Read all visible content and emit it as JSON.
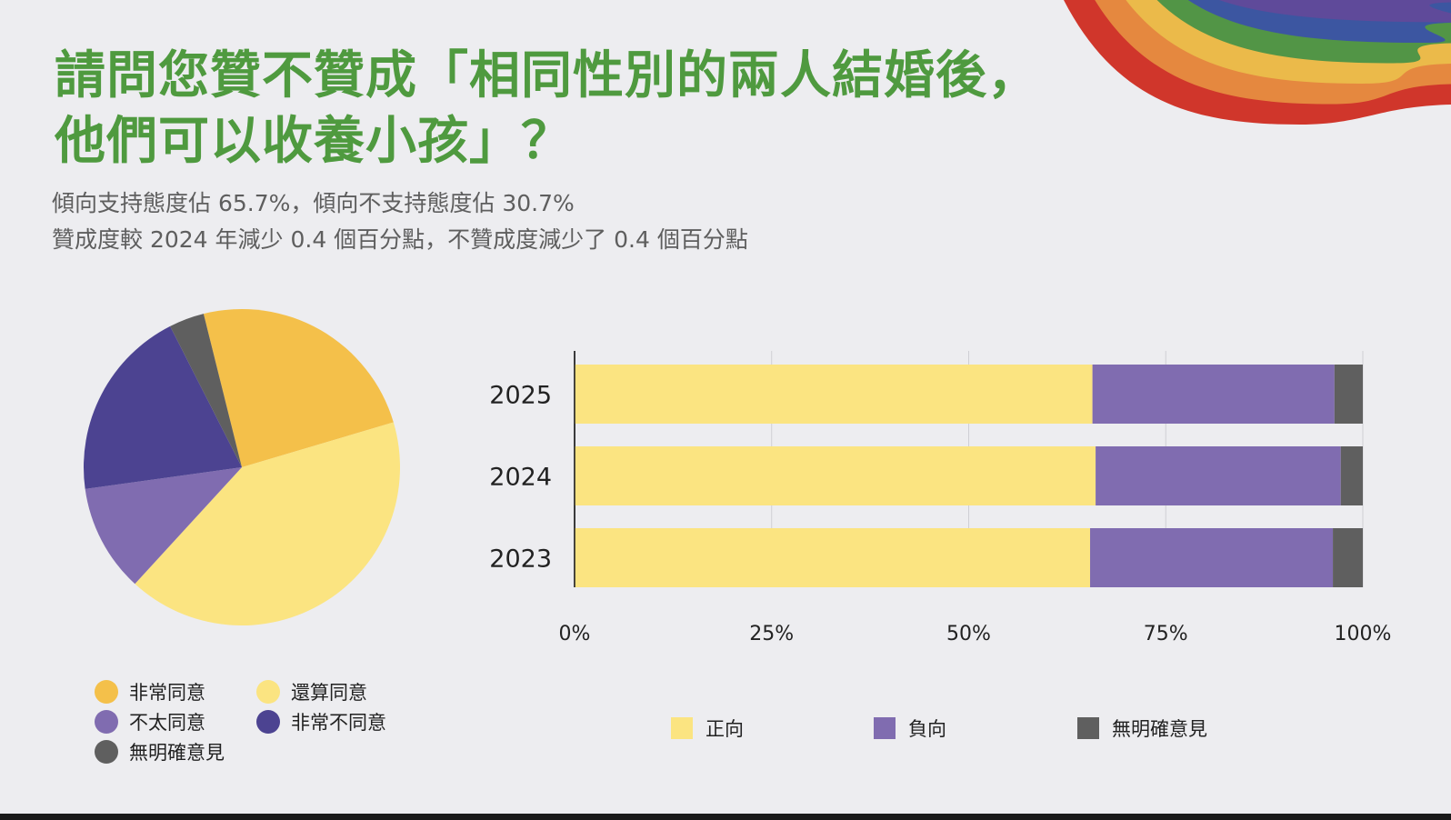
{
  "title_line1": "請問您贊不贊成「相同性別的兩人結婚後，",
  "title_line2": "他們可以收養小孩」？",
  "subtitle_line1": "傾向支持態度佔 65.7%，傾向不支持態度佔 30.7%",
  "subtitle_line2": "贊成度較 2024 年減少 0.4 個百分點，不贊成度減少了 0.4 個百分點",
  "colors": {
    "very_agree": "#f4c04a",
    "somewhat_agree": "#fbe481",
    "somewhat_disagree": "#806cb0",
    "very_disagree": "#4c4391",
    "no_opinion": "#5f5f5f",
    "positive": "#fbe481",
    "negative": "#806cb0",
    "undecided": "#5f5f5f",
    "rainbow": [
      "#d0362b",
      "#e5883f",
      "#ebba4a",
      "#529546",
      "#3c56a1",
      "#5f4a9a"
    ]
  },
  "chart_data": [
    {
      "type": "pie",
      "title": "",
      "start_angle_deg": -104,
      "slices": [
        {
          "key": "very_agree",
          "label": "非常同意",
          "value": 24.3
        },
        {
          "key": "somewhat_agree",
          "label": "還算同意",
          "value": 41.4
        },
        {
          "key": "somewhat_disagree",
          "label": "不太同意",
          "value": 11.0
        },
        {
          "key": "very_disagree",
          "label": "非常不同意",
          "value": 19.7
        },
        {
          "key": "no_opinion",
          "label": "無明確意見",
          "value": 3.6
        }
      ],
      "legend_order": [
        "very_agree",
        "somewhat_agree",
        "somewhat_disagree",
        "very_disagree",
        "no_opinion"
      ]
    },
    {
      "type": "bar",
      "orientation": "horizontal",
      "stacked": true,
      "categories": [
        "2025",
        "2024",
        "2023"
      ],
      "series": [
        {
          "key": "positive",
          "name": "正向",
          "values": [
            65.7,
            66.1,
            65.4
          ]
        },
        {
          "key": "negative",
          "name": "負向",
          "values": [
            30.7,
            31.1,
            30.8
          ]
        },
        {
          "key": "undecided",
          "name": "無明確意見",
          "values": [
            3.6,
            2.8,
            3.8
          ]
        }
      ],
      "xlim": [
        0,
        100
      ],
      "xticks": [
        0,
        25,
        50,
        75,
        100
      ],
      "xtick_labels": [
        "0%",
        "25%",
        "50%",
        "75%",
        "100%"
      ],
      "grid": true,
      "legend_position": "bottom"
    }
  ]
}
